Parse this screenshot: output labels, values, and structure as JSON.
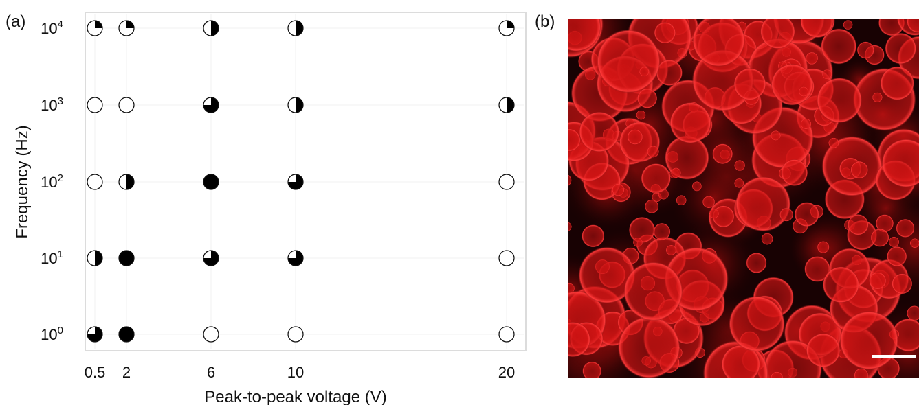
{
  "panels": {
    "a": "(a)",
    "b": "(b)"
  },
  "chart_data": {
    "type": "scatter",
    "xlabel": "Peak-to-peak voltage (V)",
    "ylabel": "Frequency (Hz)",
    "x_ticks": [
      "0.5",
      "2",
      "6",
      "10",
      "20"
    ],
    "y_ticks": [
      {
        "base": "10",
        "exp": "0"
      },
      {
        "base": "10",
        "exp": "1"
      },
      {
        "base": "10",
        "exp": "2"
      },
      {
        "base": "10",
        "exp": "3"
      },
      {
        "base": "10",
        "exp": "4"
      }
    ],
    "y_scale": "log",
    "grid": true,
    "marker_note": "fill = fraction of circle filled black",
    "points": [
      {
        "x": "0.5",
        "y": "1",
        "fill": 0.75
      },
      {
        "x": "0.5",
        "y": "10",
        "fill": 0.5
      },
      {
        "x": "0.5",
        "y": "100",
        "fill": 0
      },
      {
        "x": "0.5",
        "y": "1000",
        "fill": 0
      },
      {
        "x": "0.5",
        "y": "10000",
        "fill": 0.25
      },
      {
        "x": "2",
        "y": "1",
        "fill": 1
      },
      {
        "x": "2",
        "y": "10",
        "fill": 1
      },
      {
        "x": "2",
        "y": "100",
        "fill": 0.5
      },
      {
        "x": "2",
        "y": "1000",
        "fill": 0
      },
      {
        "x": "2",
        "y": "10000",
        "fill": 0.25
      },
      {
        "x": "6",
        "y": "1",
        "fill": 0
      },
      {
        "x": "6",
        "y": "10",
        "fill": 0.75
      },
      {
        "x": "6",
        "y": "100",
        "fill": 1
      },
      {
        "x": "6",
        "y": "1000",
        "fill": 0.75
      },
      {
        "x": "6",
        "y": "10000",
        "fill": 0.5
      },
      {
        "x": "10",
        "y": "1",
        "fill": 0
      },
      {
        "x": "10",
        "y": "10",
        "fill": 0.75
      },
      {
        "x": "10",
        "y": "100",
        "fill": 0.75
      },
      {
        "x": "10",
        "y": "1000",
        "fill": 0.5
      },
      {
        "x": "10",
        "y": "10000",
        "fill": 0.5
      },
      {
        "x": "20",
        "y": "1",
        "fill": 0
      },
      {
        "x": "20",
        "y": "10",
        "fill": 0
      },
      {
        "x": "20",
        "y": "100",
        "fill": 0
      },
      {
        "x": "20",
        "y": "1000",
        "fill": 0.5
      },
      {
        "x": "20",
        "y": "10000",
        "fill": 0.25
      }
    ]
  },
  "micrograph": {
    "description_colors": {
      "membrane": "#ff2a2a",
      "background": "#160203"
    }
  }
}
